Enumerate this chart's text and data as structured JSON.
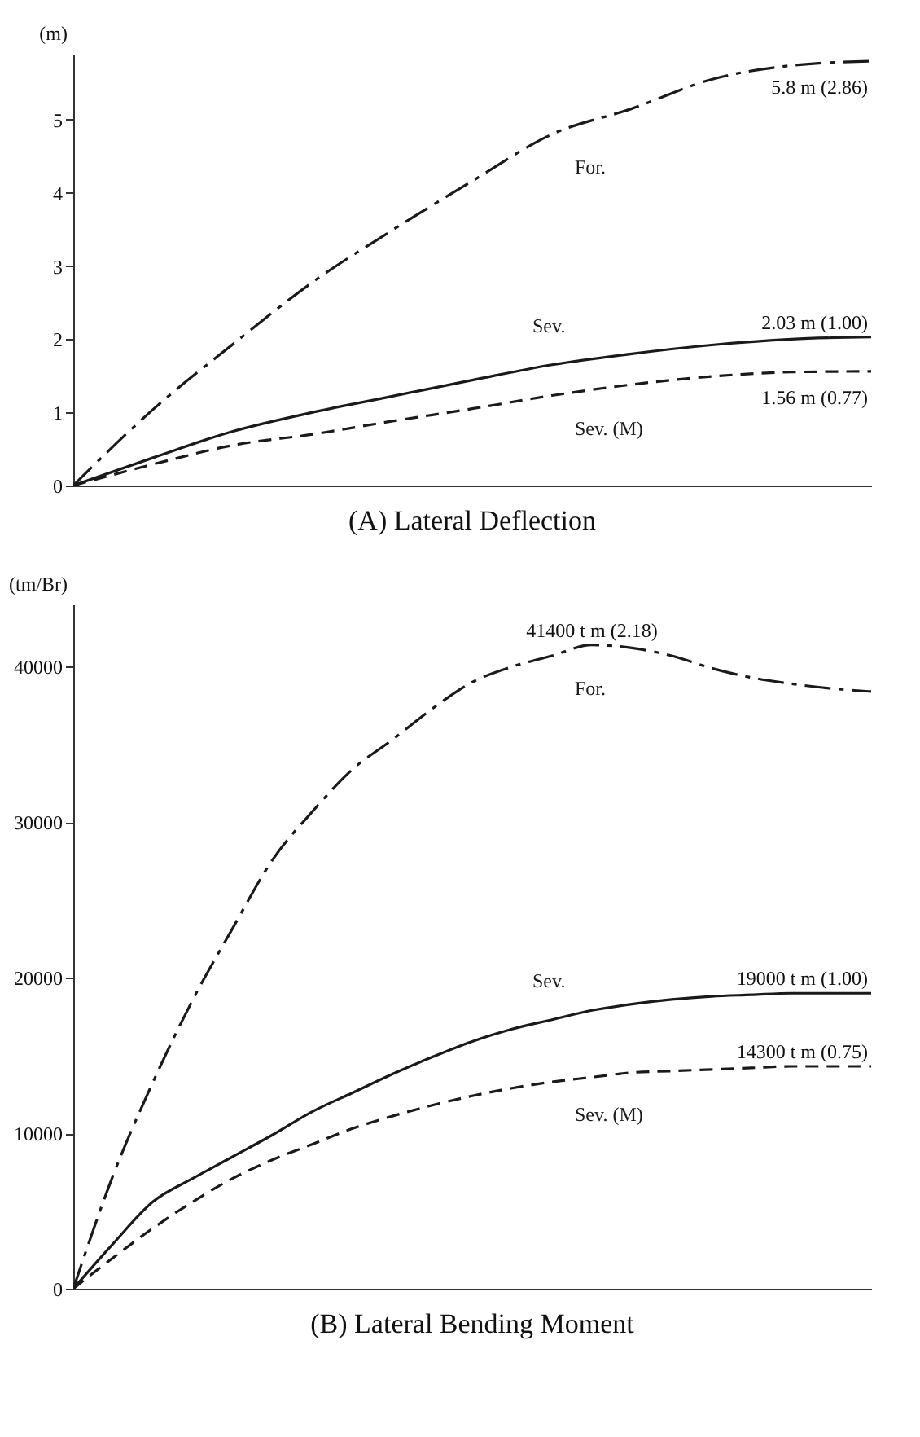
{
  "chart_data": [
    {
      "type": "line",
      "title": "(A) Lateral Deflection",
      "ylabel": "(m)",
      "categories": [
        null,
        null,
        null,
        null,
        null,
        null,
        null,
        null,
        null,
        null,
        null
      ],
      "ylim": [
        0,
        5.9
      ],
      "yticks": [
        0,
        1,
        2,
        3,
        4,
        5
      ],
      "tick_labels": "y",
      "series": [
        {
          "name": "For.",
          "color": "#1a1a1a",
          "line_style": "dashdot",
          "values": [
            0,
            1.04,
            1.93,
            2.78,
            3.49,
            4.16,
            4.8,
            5.15,
            5.55,
            5.74,
            5.8
          ],
          "value_labels": [
            null,
            null,
            null,
            null,
            null,
            null,
            null,
            null,
            null,
            null,
            "5.8 m (2.86)"
          ]
        },
        {
          "name": "Sev.",
          "color": "#1a1a1a",
          "line_style": "solid",
          "values": [
            0,
            0.38,
            0.74,
            1.0,
            1.22,
            1.44,
            1.65,
            1.8,
            1.92,
            2.0,
            2.03
          ],
          "value_labels": [
            null,
            null,
            null,
            null,
            null,
            null,
            null,
            null,
            null,
            null,
            "2.03 m (1.00)"
          ]
        },
        {
          "name": "Sev. (M)",
          "color": "#1a1a1a",
          "line_style": "dashed",
          "values": [
            0,
            0.29,
            0.55,
            0.7,
            0.88,
            1.05,
            1.23,
            1.38,
            1.49,
            1.55,
            1.56
          ],
          "value_labels": [
            null,
            null,
            null,
            null,
            null,
            null,
            null,
            null,
            null,
            null,
            "1.56 m (0.77)"
          ]
        }
      ]
    },
    {
      "type": "line",
      "title": "(B)  Lateral Bending Moment",
      "ylabel": "(tm/Br)",
      "categories": [
        null,
        null,
        null,
        null,
        null,
        null,
        null,
        null,
        null,
        null,
        null,
        null,
        null,
        null,
        null,
        null,
        null,
        null,
        null,
        null,
        null
      ],
      "ylim": [
        0,
        44000
      ],
      "yticks": [
        0,
        10000,
        20000,
        30000,
        40000
      ],
      "tick_labels": "y",
      "series": [
        {
          "name": "For.",
          "color": "#1a1a1a",
          "line_style": "dashdot",
          "values": [
            0,
            7300,
            13300,
            18600,
            23200,
            27600,
            30700,
            33400,
            35300,
            37300,
            39000,
            40000,
            40700,
            41400,
            41200,
            40700,
            39900,
            39300,
            38900,
            38600,
            38400
          ],
          "value_labels": [
            null,
            null,
            null,
            null,
            null,
            null,
            null,
            null,
            null,
            null,
            null,
            null,
            null,
            "41400 t m (2.18)",
            null,
            null,
            null,
            null,
            null,
            null,
            null
          ]
        },
        {
          "name": "Sev.",
          "color": "#1a1a1a",
          "line_style": "solid",
          "values": [
            0,
            2900,
            5600,
            7100,
            8500,
            9900,
            11400,
            12600,
            13800,
            14900,
            15900,
            16700,
            17300,
            17900,
            18300,
            18600,
            18800,
            18900,
            19000,
            19000,
            19000
          ],
          "value_labels": [
            null,
            null,
            null,
            null,
            null,
            null,
            null,
            null,
            null,
            null,
            null,
            null,
            null,
            null,
            null,
            null,
            null,
            null,
            null,
            null,
            "19000 t m (1.00)"
          ]
        },
        {
          "name": "Sev. (M)",
          "color": "#1a1a1a",
          "line_style": "dashed",
          "values": [
            0,
            2000,
            3900,
            5600,
            7100,
            8300,
            9300,
            10300,
            11100,
            11800,
            12400,
            12900,
            13300,
            13600,
            13900,
            14000,
            14100,
            14200,
            14300,
            14300,
            14300
          ],
          "value_labels": [
            null,
            null,
            null,
            null,
            null,
            null,
            null,
            null,
            null,
            null,
            null,
            null,
            null,
            null,
            null,
            null,
            null,
            null,
            null,
            null,
            "14300 t m (0.75)"
          ]
        }
      ]
    }
  ]
}
